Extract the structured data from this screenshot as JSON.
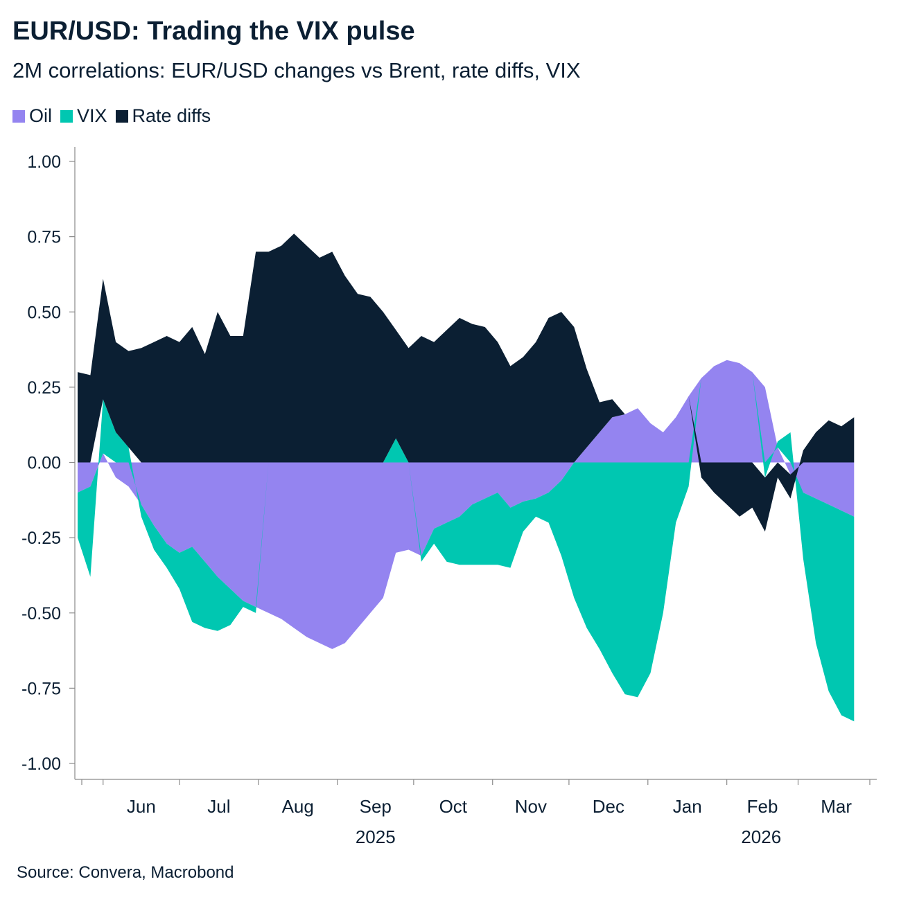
{
  "header": {
    "title": "EUR/USD: Trading the VIX pulse",
    "subtitle": "2M correlations: EUR/USD changes vs Brent, rate diffs, VIX"
  },
  "legend": [
    {
      "label": "Oil",
      "color": "#9484f0"
    },
    {
      "label": "VIX",
      "color": "#00c7b1"
    },
    {
      "label": "Rate diffs",
      "color": "#0b1f33"
    }
  ],
  "source": "Source: Convera, Macrobond",
  "chart_data": {
    "type": "area",
    "title": "EUR/USD: Trading the VIX pulse",
    "subtitle": "2M correlations: EUR/USD changes vs Brent, rate diffs, VIX",
    "stacked": true,
    "ylim": [
      -1.0,
      1.0
    ],
    "y_ticks": [
      "1.00",
      "0.75",
      "0.50",
      "0.25",
      "0.00",
      "-0.25",
      "-0.50",
      "-0.75",
      "-1.00"
    ],
    "x_range": [
      "2025-05-22",
      "2026-03-24"
    ],
    "month_labels": [
      "Jun",
      "Jul",
      "Aug",
      "Sep",
      "Oct",
      "Nov",
      "Dec",
      "Jan",
      "Feb",
      "Mar"
    ],
    "year_labels": [
      "2025",
      "2026"
    ],
    "legend_position": "top-left",
    "grid": false,
    "x": [
      "2025-05-22",
      "2025-05-27",
      "2025-06-01",
      "2025-06-06",
      "2025-06-11",
      "2025-06-16",
      "2025-06-21",
      "2025-06-26",
      "2025-07-01",
      "2025-07-06",
      "2025-07-11",
      "2025-07-16",
      "2025-07-21",
      "2025-07-26",
      "2025-07-31",
      "2025-08-05",
      "2025-08-10",
      "2025-08-15",
      "2025-08-20",
      "2025-08-25",
      "2025-08-30",
      "2025-09-04",
      "2025-09-09",
      "2025-09-14",
      "2025-09-19",
      "2025-09-24",
      "2025-09-29",
      "2025-10-04",
      "2025-10-09",
      "2025-10-14",
      "2025-10-19",
      "2025-10-24",
      "2025-10-29",
      "2025-11-03",
      "2025-11-08",
      "2025-11-13",
      "2025-11-18",
      "2025-11-23",
      "2025-11-28",
      "2025-12-03",
      "2025-12-08",
      "2025-12-13",
      "2025-12-18",
      "2025-12-23",
      "2025-12-28",
      "2026-01-02",
      "2026-01-07",
      "2026-01-12",
      "2026-01-17",
      "2026-01-22",
      "2026-01-27",
      "2026-02-01",
      "2026-02-06",
      "2026-02-11",
      "2026-02-16",
      "2026-02-21",
      "2026-02-26",
      "2026-03-03",
      "2026-03-08",
      "2026-03-13",
      "2026-03-18",
      "2026-03-23"
    ],
    "series": [
      {
        "name": "Oil",
        "color": "#9484f0",
        "values": [
          -0.1,
          -0.08,
          0.03,
          -0.05,
          -0.08,
          -0.14,
          -0.21,
          -0.27,
          -0.3,
          -0.28,
          -0.33,
          -0.38,
          -0.42,
          -0.46,
          -0.48,
          -0.5,
          -0.52,
          -0.55,
          -0.58,
          -0.6,
          -0.62,
          -0.6,
          -0.55,
          -0.5,
          -0.45,
          -0.3,
          -0.29,
          -0.31,
          -0.22,
          -0.2,
          -0.18,
          -0.14,
          -0.12,
          -0.1,
          -0.15,
          -0.13,
          -0.12,
          -0.1,
          -0.06,
          0.0,
          0.05,
          0.1,
          0.15,
          0.16,
          0.18,
          0.13,
          0.1,
          0.15,
          0.22,
          0.28,
          0.32,
          0.34,
          0.33,
          0.3,
          0.25,
          0.05,
          -0.04,
          -0.1,
          -0.12,
          -0.14,
          -0.16,
          -0.18
        ]
      },
      {
        "name": "VIX",
        "color": "#00c7b1",
        "values": [
          -0.15,
          -0.3,
          0.18,
          0.1,
          0.05,
          -0.04,
          -0.08,
          -0.08,
          -0.12,
          -0.25,
          -0.22,
          -0.18,
          -0.12,
          -0.02,
          -0.02,
          0.0,
          0.0,
          0.0,
          0.0,
          0.0,
          0.0,
          0.0,
          0.0,
          0.0,
          0.0,
          0.08,
          0.0,
          -0.02,
          -0.05,
          -0.13,
          -0.16,
          -0.2,
          -0.22,
          -0.24,
          -0.2,
          -0.1,
          -0.06,
          -0.1,
          -0.25,
          -0.45,
          -0.55,
          -0.62,
          -0.7,
          -0.77,
          -0.78,
          -0.7,
          -0.5,
          -0.2,
          -0.08,
          0.0,
          0.0,
          0.0,
          0.0,
          0.0,
          -0.05,
          0.02,
          0.1,
          -0.22,
          -0.48,
          -0.62,
          -0.68,
          -0.68
        ]
      },
      {
        "name": "Rate diffs",
        "color": "#0b1f33",
        "values": [
          0.3,
          0.29,
          0.4,
          0.3,
          0.32,
          0.38,
          0.4,
          0.42,
          0.4,
          0.45,
          0.36,
          0.5,
          0.42,
          0.42,
          0.7,
          0.7,
          0.72,
          0.76,
          0.72,
          0.68,
          0.7,
          0.62,
          0.56,
          0.55,
          0.5,
          0.36,
          0.38,
          0.42,
          0.4,
          0.44,
          0.48,
          0.46,
          0.45,
          0.4,
          0.32,
          0.35,
          0.4,
          0.48,
          0.5,
          0.45,
          0.26,
          0.1,
          0.06,
          0.0,
          0.0,
          0.0,
          0.0,
          0.0,
          0.0,
          -0.05,
          -0.1,
          -0.14,
          -0.18,
          -0.15,
          -0.18,
          -0.05,
          -0.08,
          0.04,
          0.1,
          0.14,
          0.12,
          0.15
        ]
      }
    ]
  }
}
